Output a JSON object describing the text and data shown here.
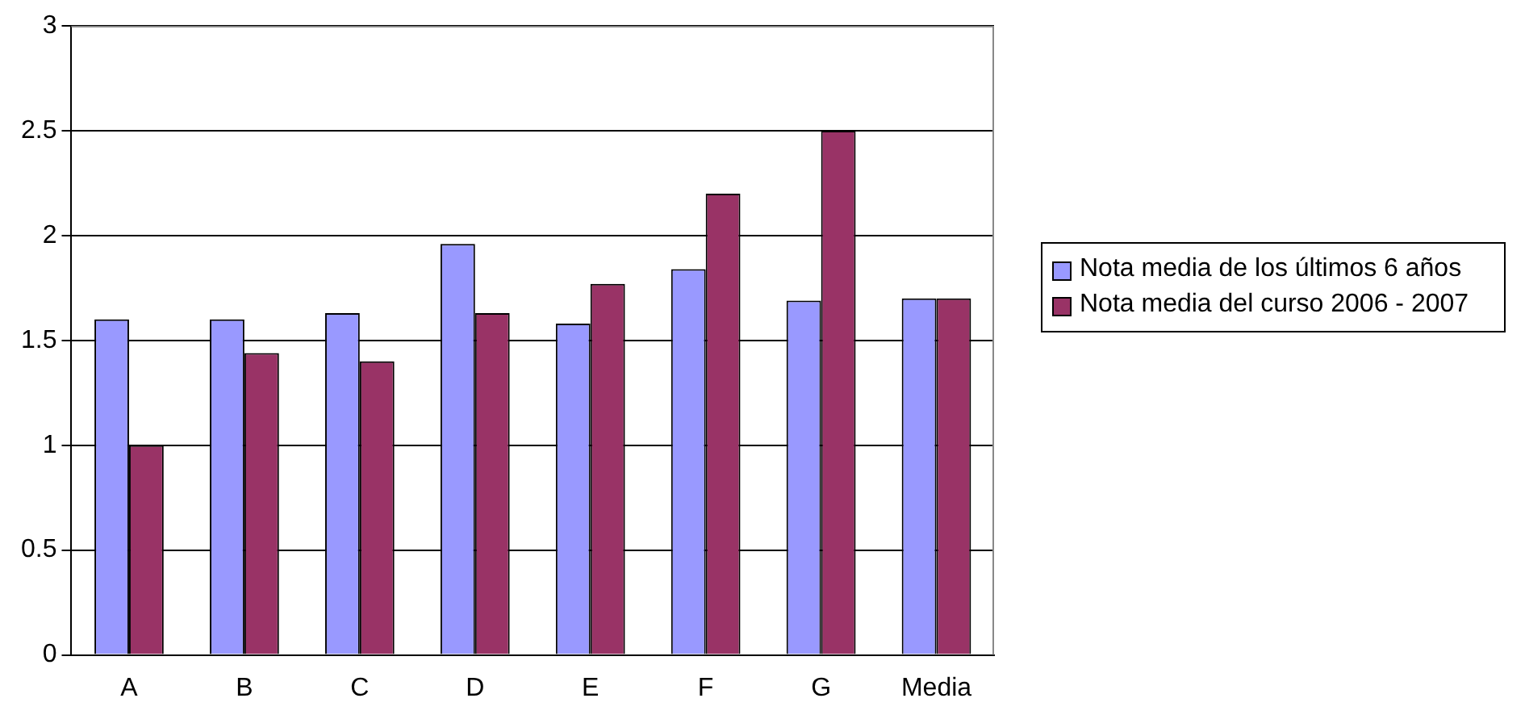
{
  "chart_data": {
    "type": "bar",
    "categories": [
      "A",
      "B",
      "C",
      "D",
      "E",
      "F",
      "G",
      "Media"
    ],
    "series": [
      {
        "name": "Nota media de los últimos 6 años",
        "color": "#9999ff",
        "values": [
          1.6,
          1.6,
          1.63,
          1.96,
          1.58,
          1.84,
          1.69,
          1.7
        ]
      },
      {
        "name": "Nota media del curso 2006 - 2007",
        "color": "#993366",
        "values": [
          1.0,
          1.44,
          1.4,
          1.63,
          1.77,
          2.2,
          2.5,
          1.7
        ]
      }
    ],
    "ylim": [
      0,
      3
    ],
    "yticks": [
      0,
      0.5,
      1,
      1.5,
      2,
      2.5,
      3
    ],
    "grid": "y",
    "legend": "right"
  }
}
